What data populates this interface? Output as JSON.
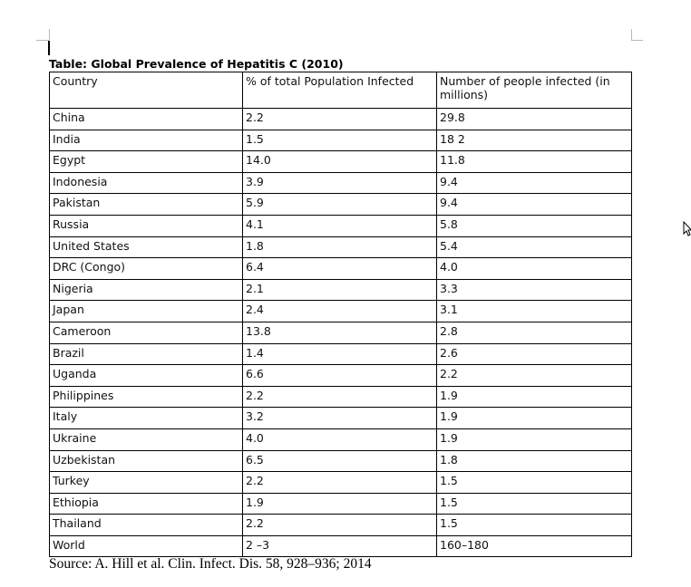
{
  "document": {
    "title": "Table: Global Prevalence of Hepatitis C (2010)",
    "headers": [
      "Country",
      "% of total Population Infected",
      "Number of people infected (in millions)"
    ],
    "rows": [
      [
        "China",
        "2.2",
        "29.8"
      ],
      [
        "India",
        "1.5",
        "18 2"
      ],
      [
        "Egypt",
        "14.0",
        "11.8"
      ],
      [
        "Indonesia",
        "3.9",
        "9.4"
      ],
      [
        "Pakistan",
        "5.9",
        "9.4"
      ],
      [
        "Russia",
        "4.1",
        "5.8"
      ],
      [
        "United States",
        "1.8",
        "5.4"
      ],
      [
        "DRC (Congo)",
        "6.4",
        "4.0"
      ],
      [
        "Nigeria",
        "2.1",
        "3.3"
      ],
      [
        "Japan",
        "2.4",
        "3.1"
      ],
      [
        "Cameroon",
        "13.8",
        "2.8"
      ],
      [
        "Brazil",
        "1.4",
        "2.6"
      ],
      [
        "Uganda",
        "6.6",
        "2.2"
      ],
      [
        "Philippines",
        "2.2",
        "1.9"
      ],
      [
        "Italy",
        "3.2",
        "1.9"
      ],
      [
        "Ukraine",
        "4.0",
        "1.9"
      ],
      [
        "Uzbekistan",
        "6.5",
        "1.8"
      ],
      [
        "Turkey",
        "2.2",
        "1.5"
      ],
      [
        "Ethiopia",
        "1.9",
        "1.5"
      ],
      [
        "Thailand",
        "2.2",
        "1.5"
      ],
      [
        "World",
        "2 –3",
        "160–180"
      ]
    ],
    "source": "Source: A. Hill et al. Clin. Infect. Dis. 58, 928–936; 2014"
  },
  "icons": {
    "mouse": "arrow-cursor-icon"
  }
}
